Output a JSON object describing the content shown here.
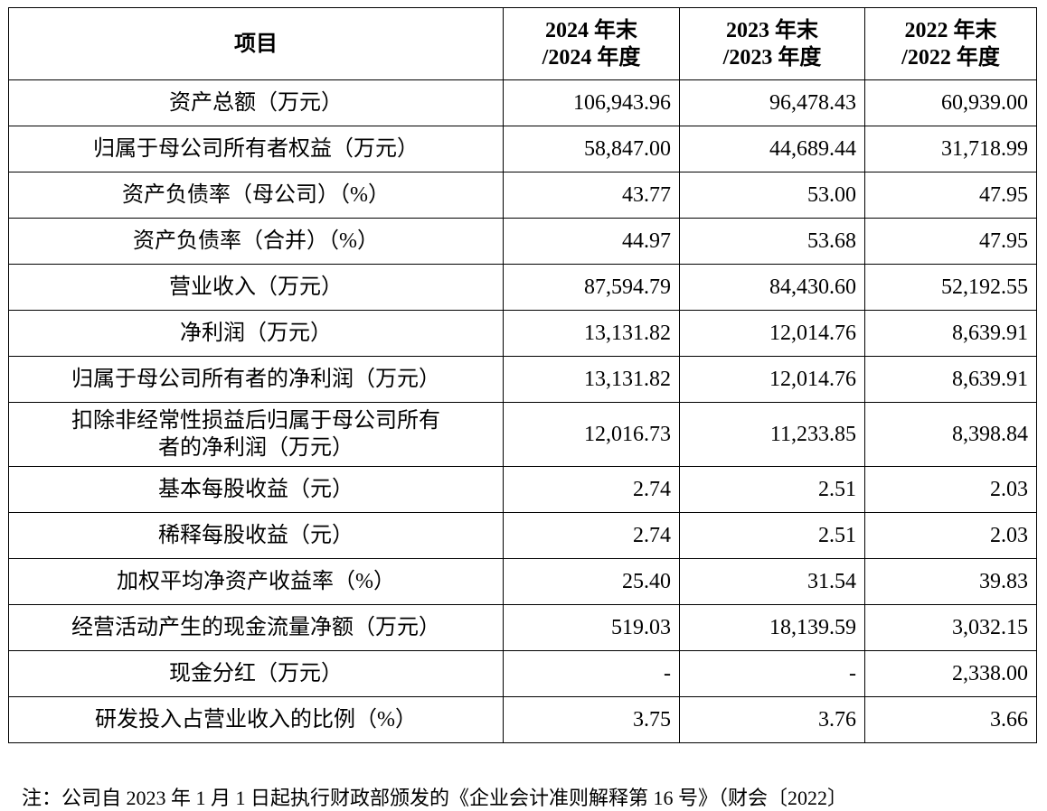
{
  "table": {
    "header": {
      "item": "项目",
      "col1_line1": "2024 年末",
      "col1_line2": "/2024 年度",
      "col2_line1": "2023 年末",
      "col2_line2": "/2023 年度",
      "col3_line1": "2022 年末",
      "col3_line2": "/2022 年度"
    },
    "rows": [
      {
        "label": "资产总额（万元）",
        "v2024": "106,943.96",
        "v2023": "96,478.43",
        "v2022": "60,939.00"
      },
      {
        "label": "归属于母公司所有者权益（万元）",
        "v2024": "58,847.00",
        "v2023": "44,689.44",
        "v2022": "31,718.99"
      },
      {
        "label": "资产负债率（母公司）（%）",
        "v2024": "43.77",
        "v2023": "53.00",
        "v2022": "47.95"
      },
      {
        "label": "资产负债率（合并）（%）",
        "v2024": "44.97",
        "v2023": "53.68",
        "v2022": "47.95"
      },
      {
        "label": "营业收入（万元）",
        "v2024": "87,594.79",
        "v2023": "84,430.60",
        "v2022": "52,192.55"
      },
      {
        "label": "净利润（万元）",
        "v2024": "13,131.82",
        "v2023": "12,014.76",
        "v2022": "8,639.91"
      },
      {
        "label": "归属于母公司所有者的净利润（万元）",
        "v2024": "13,131.82",
        "v2023": "12,014.76",
        "v2022": "8,639.91"
      },
      {
        "label": "扣除非经常性损益后归属于母公司所有者的净利润（万元）",
        "label_line1": "扣除非经常性损益后归属于母公司所有",
        "label_line2": "者的净利润（万元）",
        "v2024": "12,016.73",
        "v2023": "11,233.85",
        "v2022": "8,398.84"
      },
      {
        "label": "基本每股收益（元）",
        "v2024": "2.74",
        "v2023": "2.51",
        "v2022": "2.03"
      },
      {
        "label": "稀释每股收益（元）",
        "v2024": "2.74",
        "v2023": "2.51",
        "v2022": "2.03"
      },
      {
        "label": "加权平均净资产收益率（%）",
        "v2024": "25.40",
        "v2023": "31.54",
        "v2022": "39.83"
      },
      {
        "label": "经营活动产生的现金流量净额（万元）",
        "v2024": "519.03",
        "v2023": "18,139.59",
        "v2022": "3,032.15"
      },
      {
        "label": "现金分红（万元）",
        "v2024": "-",
        "v2023": "-",
        "v2022": "2,338.00"
      },
      {
        "label": "研发投入占营业收入的比例（%）",
        "v2024": "3.75",
        "v2023": "3.76",
        "v2022": "3.66"
      }
    ]
  },
  "footnote": "注：公司自 2023 年 1 月 1 日起执行财政部颁发的《企业会计准则解释第 16 号》（财会〔2022〕"
}
